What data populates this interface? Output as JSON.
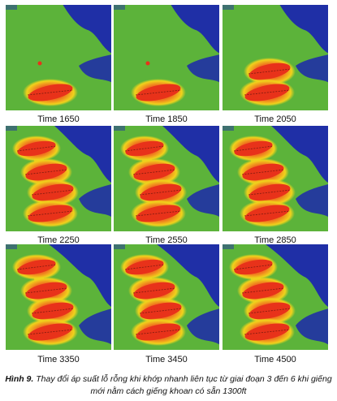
{
  "figure": {
    "panels": [
      {
        "time_label": "Time 1650",
        "stages": 1
      },
      {
        "time_label": "Time 1850",
        "stages": 1
      },
      {
        "time_label": "Time 2050",
        "stages": 2
      },
      {
        "time_label": "Time 2250",
        "stages": 4
      },
      {
        "time_label": "Time 2550",
        "stages": 4
      },
      {
        "time_label": "Time 2850",
        "stages": 4
      },
      {
        "time_label": "Time 3350",
        "stages": 4
      },
      {
        "time_label": "Time 3450",
        "stages": 4
      },
      {
        "time_label": "Time 4500",
        "stages": 4
      }
    ],
    "caption_prefix": "Hình 9.",
    "caption_text": "Thay đổi áp suất lỗ rỗng khi khớp nhanh liên tục từ giai đoạn 3 đến 6 khi giếng mới nằm cách giếng khoan có sẵn 1300ft"
  },
  "colors": {
    "background_green": "#5cb33a",
    "blue_region": "#1f2fa6",
    "high_pressure": "#e8321a",
    "mid_pressure": "#f0d21c"
  }
}
